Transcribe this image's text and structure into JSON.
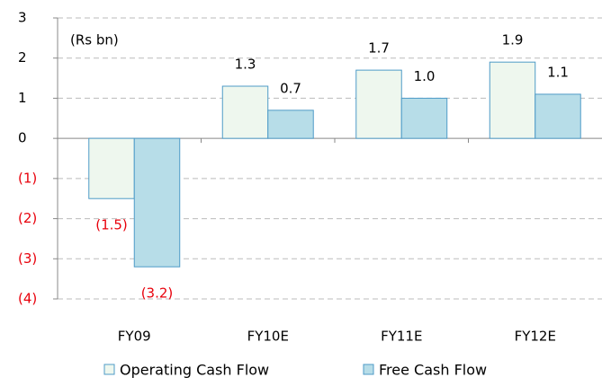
{
  "chart_data": {
    "type": "bar",
    "annotation": "(Rs bn)",
    "categories": [
      "FY09",
      "FY10E",
      "FY11E",
      "FY12E"
    ],
    "series": [
      {
        "name": "Operating Cash Flow",
        "color": "#eef7ee",
        "values": [
          -1.5,
          1.3,
          1.7,
          1.9
        ],
        "value_labels": [
          "(1.5)",
          "1.3",
          "1.7",
          "1.9"
        ]
      },
      {
        "name": "Free Cash Flow",
        "color": "#b7dde8",
        "values": [
          -3.2,
          0.7,
          1.0,
          1.1
        ],
        "value_labels": [
          "(3.2)",
          "0.7",
          "1.0",
          "1.1"
        ]
      }
    ],
    "ylim": [
      -4,
      3
    ],
    "yticks": [
      {
        "value": -4,
        "label": "(4)"
      },
      {
        "value": -3,
        "label": "(3)"
      },
      {
        "value": -2,
        "label": "(2)"
      },
      {
        "value": -1,
        "label": "(1)"
      },
      0,
      1,
      2,
      3
    ],
    "grid": true,
    "legend": "bottom"
  }
}
